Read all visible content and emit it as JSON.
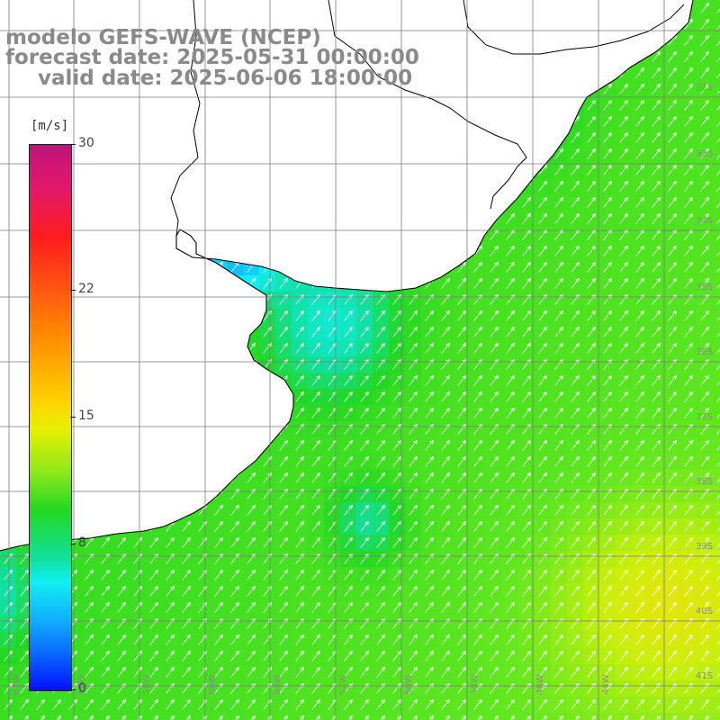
{
  "title": {
    "line1": "modelo GEFS-WAVE (NCEP)",
    "line2": "forecast date: 2025-05-31 00:00:00",
    "line3": "valid date: 2025-06-06 18:00:00"
  },
  "colorbar": {
    "unit": "[m/s]",
    "ticks": [
      {
        "value": 30,
        "label": "30"
      },
      {
        "value": 22,
        "label": "22"
      },
      {
        "value": 15,
        "label": "15"
      },
      {
        "value": 8,
        "label": "8"
      },
      {
        "value": 0,
        "label": "0"
      }
    ]
  },
  "map": {
    "grid_lat_labels": [
      "32S",
      "33S",
      "34S",
      "35S",
      "36S",
      "37S",
      "38S",
      "39S",
      "40S",
      "41S"
    ],
    "grid_lon_labels": [
      "62W",
      "60W",
      "58W",
      "56W",
      "54W",
      "52W",
      "50W",
      "48W",
      "46W",
      "44W"
    ],
    "colors": {
      "land": "#ffffff",
      "coast": "#000000",
      "grid": "#7a7a7a",
      "arrows": "#ffffff",
      "label": "#8a8a8a"
    }
  }
}
